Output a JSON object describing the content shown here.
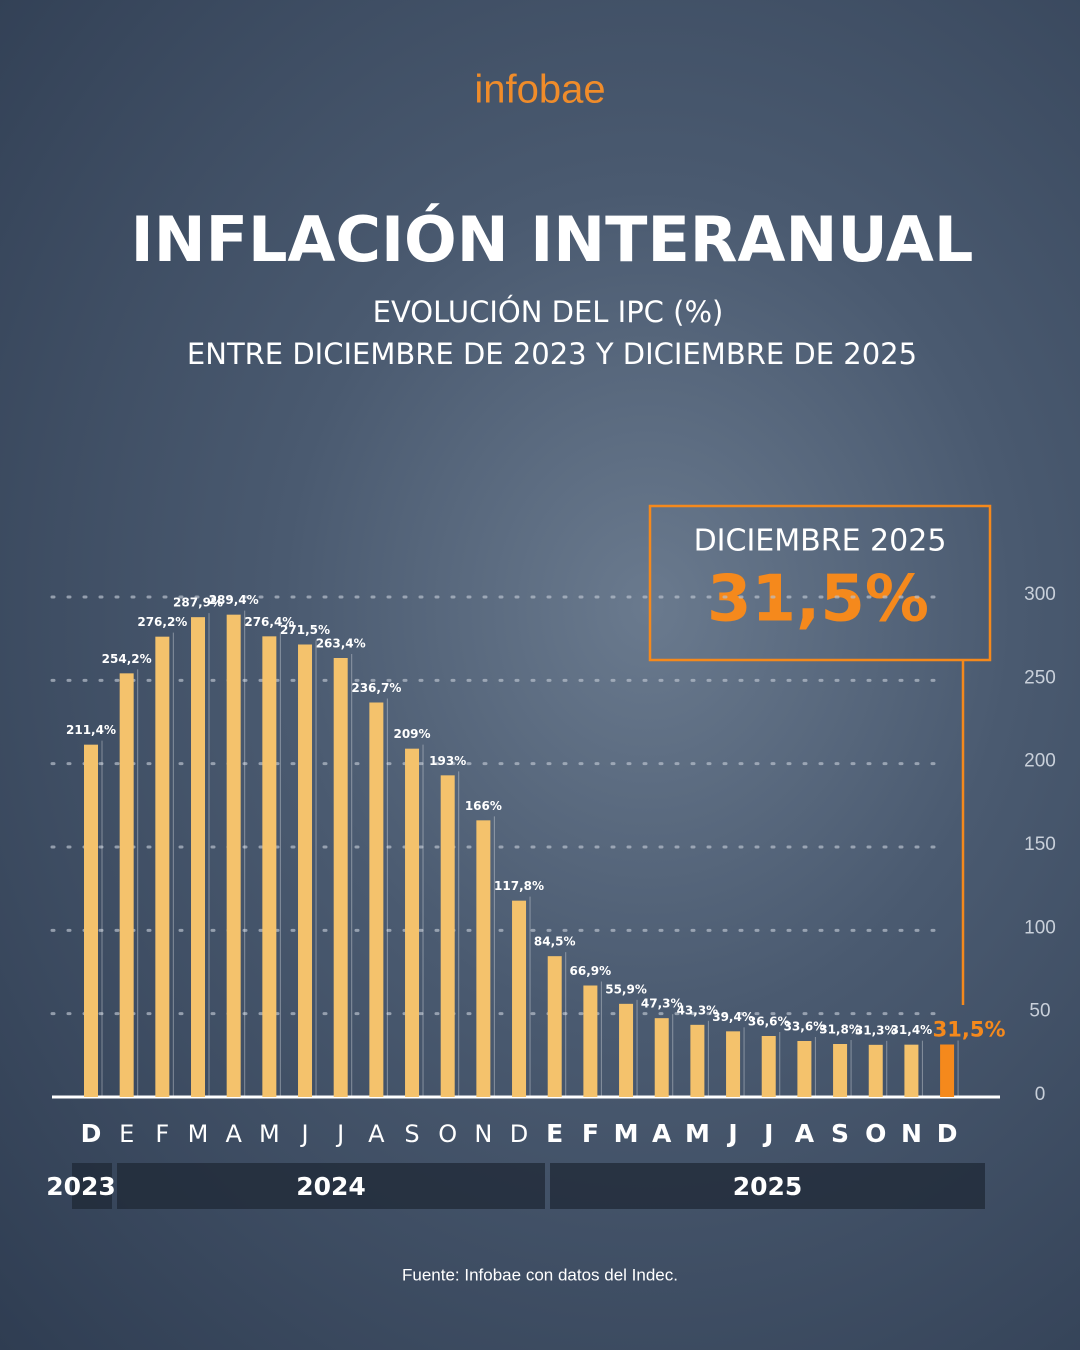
{
  "chart_data": {
    "type": "bar",
    "brand": "infobae",
    "title": "INFLACIÓN INTERANUAL",
    "subtitle": [
      "EVOLUCIÓN DEL IPC (%)",
      "ENTRE DICIEMBRE DE 2023 Y DICIEMBRE DE 2025"
    ],
    "categories": [
      "D",
      "E",
      "F",
      "M",
      "A",
      "M",
      "J",
      "J",
      "A",
      "S",
      "O",
      "N",
      "D",
      "E",
      "F",
      "M",
      "A",
      "M",
      "J",
      "J",
      "A",
      "S",
      "O",
      "N",
      "D"
    ],
    "years": [
      "2023",
      "2024",
      "2025"
    ],
    "values": [
      211.4,
      254.2,
      276.2,
      287.9,
      289.4,
      276.4,
      271.5,
      263.4,
      236.7,
      209,
      193,
      166,
      117.8,
      84.5,
      66.9,
      55.9,
      47.3,
      43.3,
      39.4,
      36.6,
      33.6,
      31.8,
      31.3,
      31.4,
      31.5
    ],
    "value_labels": [
      "211,4%",
      "254,2%",
      "276,2%",
      "287,9%",
      "289,4%",
      "276,4%",
      "271,5%",
      "263,4%",
      "236,7%",
      "209%",
      "193%",
      "166%",
      "117,8%",
      "84,5%",
      "66,9%",
      "55,9%",
      "47,3%",
      "43,3%",
      "39,4%",
      "36,6%",
      "33,6%",
      "31,8%",
      "31,3%",
      "31,4%",
      "31,5%"
    ],
    "color": "#f4c26c",
    "highlight_color": "#f5891c",
    "highlight_title": "DICIEMBRE 2025",
    "ylim": [
      0,
      300
    ],
    "yticks": [
      0,
      50,
      100,
      150,
      200,
      250,
      300
    ],
    "grid": true,
    "source": "Fuente: Infobae con datos del Indec."
  }
}
